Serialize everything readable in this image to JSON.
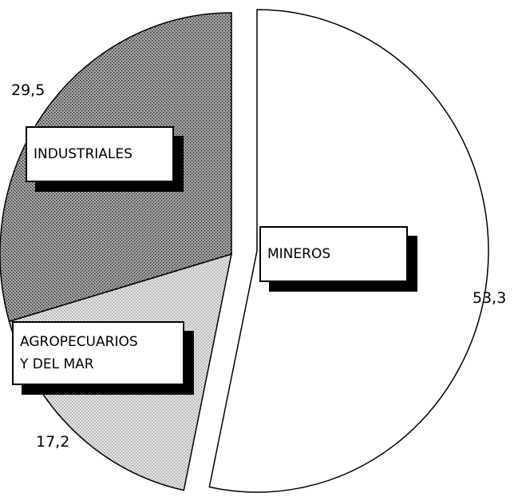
{
  "chart_data": {
    "type": "pie",
    "categories": [
      "MINEROS",
      "AGROPECUARIOS\nY DEL MAR",
      "INDUSTRIALES"
    ],
    "values": [
      53.3,
      17.2,
      29.5
    ],
    "value_labels": [
      "53,3",
      "17,2",
      "29,5"
    ],
    "colors": [
      "#ffffff",
      "#e4e4e4",
      "#a8a8a8"
    ]
  }
}
